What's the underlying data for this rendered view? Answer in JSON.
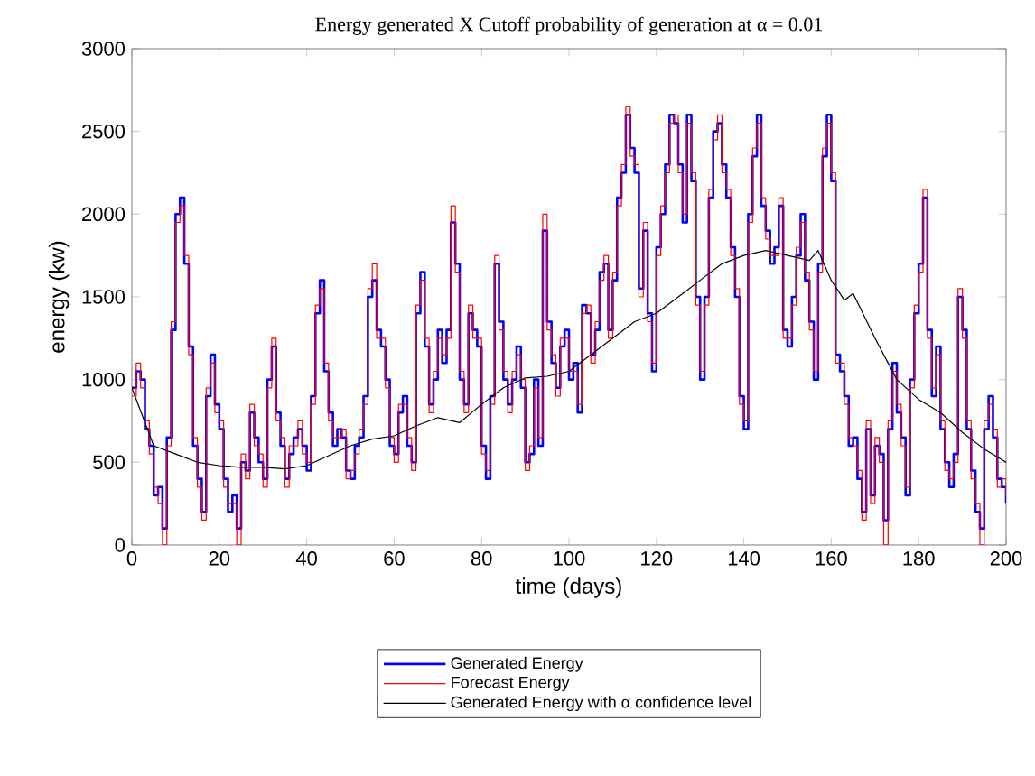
{
  "chart_data": {
    "type": "step",
    "title": "Energy generated X Cutoff probability of generation at α = 0.01",
    "xlabel": "time (days)",
    "ylabel": "energy (kw)",
    "xlim": [
      0,
      200
    ],
    "ylim": [
      0,
      3000
    ],
    "xticks": [
      0,
      20,
      40,
      60,
      80,
      100,
      120,
      140,
      160,
      180,
      200
    ],
    "yticks": [
      0,
      500,
      1000,
      1500,
      2000,
      2500,
      3000
    ],
    "grid": false,
    "legend": "bottom",
    "x": [
      0,
      1,
      2,
      3,
      4,
      5,
      6,
      7,
      8,
      9,
      10,
      11,
      12,
      13,
      14,
      15,
      16,
      17,
      18,
      19,
      20,
      21,
      22,
      23,
      24,
      25,
      26,
      27,
      28,
      29,
      30,
      31,
      32,
      33,
      34,
      35,
      36,
      37,
      38,
      39,
      40,
      41,
      42,
      43,
      44,
      45,
      46,
      47,
      48,
      49,
      50,
      51,
      52,
      53,
      54,
      55,
      56,
      57,
      58,
      59,
      60,
      61,
      62,
      63,
      64,
      65,
      66,
      67,
      68,
      69,
      70,
      71,
      72,
      73,
      74,
      75,
      76,
      77,
      78,
      79,
      80,
      81,
      82,
      83,
      84,
      85,
      86,
      87,
      88,
      89,
      90,
      91,
      92,
      93,
      94,
      95,
      96,
      97,
      98,
      99,
      100,
      101,
      102,
      103,
      104,
      105,
      106,
      107,
      108,
      109,
      110,
      111,
      112,
      113,
      114,
      115,
      116,
      117,
      118,
      119,
      120,
      121,
      122,
      123,
      124,
      125,
      126,
      127,
      128,
      129,
      130,
      131,
      132,
      133,
      134,
      135,
      136,
      137,
      138,
      139,
      140,
      141,
      142,
      143,
      144,
      145,
      146,
      147,
      148,
      149,
      150,
      151,
      152,
      153,
      154,
      155,
      156,
      157,
      158,
      159,
      160,
      161,
      162,
      163,
      164,
      165,
      166,
      167,
      168,
      169,
      170,
      171,
      172,
      173,
      174,
      175,
      176,
      177,
      178,
      179,
      180,
      181,
      182,
      183,
      184,
      185,
      186,
      187,
      188,
      189,
      190,
      191,
      192,
      193,
      194,
      195,
      196,
      197,
      198,
      199,
      200
    ],
    "series": [
      {
        "name": "Generated Energy",
        "color": "#0000ff",
        "values": [
          950,
          1050,
          1000,
          700,
          600,
          300,
          350,
          100,
          650,
          1300,
          2000,
          2100,
          1700,
          1200,
          600,
          400,
          200,
          900,
          1150,
          850,
          700,
          400,
          200,
          300,
          100,
          500,
          450,
          800,
          650,
          500,
          400,
          1000,
          1200,
          800,
          600,
          400,
          550,
          650,
          700,
          600,
          450,
          900,
          1400,
          1600,
          1050,
          800,
          600,
          700,
          650,
          450,
          400,
          600,
          650,
          900,
          1500,
          1600,
          1300,
          1200,
          1000,
          600,
          550,
          800,
          900,
          600,
          500,
          1400,
          1650,
          1200,
          850,
          1000,
          1300,
          1100,
          1300,
          1950,
          1700,
          1000,
          850,
          1400,
          1300,
          1200,
          600,
          400,
          900,
          1700,
          1350,
          1000,
          850,
          1000,
          1200,
          950,
          500,
          550,
          1000,
          600,
          1900,
          1350,
          1100,
          950,
          1200,
          1300,
          1000,
          1100,
          800,
          1450,
          1400,
          1150,
          1300,
          1650,
          1700,
          1300,
          1600,
          2100,
          2250,
          2600,
          2400,
          2250,
          1550,
          1900,
          1400,
          1050,
          1800,
          2000,
          2300,
          2600,
          2550,
          2300,
          1950,
          2600,
          2200,
          1500,
          1000,
          1500,
          2100,
          2500,
          2550,
          2300,
          2100,
          1800,
          1500,
          900,
          700,
          2000,
          2350,
          2600,
          2050,
          1900,
          1700,
          1800,
          2050,
          1300,
          1200,
          1500,
          1750,
          2000,
          1600,
          1350,
          1000,
          1700,
          2350,
          2600,
          2200,
          1150,
          1050,
          900,
          600,
          650,
          400,
          200,
          700,
          300,
          600,
          550,
          150,
          700,
          1100,
          800,
          650,
          300,
          1000,
          1400,
          1700,
          2100,
          1300,
          900,
          1200,
          700,
          500,
          350,
          550,
          1500,
          1300,
          700,
          450,
          200,
          100,
          700,
          900,
          650,
          400,
          350,
          250
        ]
      },
      {
        "name": "Forecast Energy",
        "color": "#ff0000",
        "values": [
          900,
          1100,
          950,
          750,
          550,
          350,
          250,
          0,
          600,
          1350,
          1950,
          2050,
          1750,
          1150,
          650,
          350,
          150,
          950,
          1100,
          800,
          750,
          350,
          250,
          250,
          0,
          550,
          400,
          850,
          600,
          550,
          350,
          950,
          1250,
          750,
          650,
          350,
          600,
          600,
          750,
          550,
          500,
          850,
          1450,
          1550,
          1100,
          750,
          650,
          650,
          700,
          400,
          450,
          550,
          700,
          850,
          1550,
          1700,
          1250,
          1250,
          950,
          650,
          500,
          850,
          850,
          650,
          450,
          1450,
          1600,
          1250,
          800,
          1050,
          1250,
          1150,
          1250,
          2050,
          1650,
          1050,
          800,
          1450,
          1250,
          1250,
          550,
          450,
          850,
          1750,
          1300,
          1050,
          800,
          1050,
          1150,
          1000,
          450,
          600,
          950,
          650,
          2000,
          1300,
          1150,
          900,
          1250,
          1250,
          1050,
          1050,
          850,
          1400,
          1450,
          1100,
          1350,
          1600,
          1750,
          1250,
          1650,
          2050,
          2300,
          2650,
          2350,
          2300,
          1500,
          1950,
          1350,
          1100,
          1750,
          2050,
          2250,
          2550,
          2600,
          2250,
          2000,
          2550,
          2250,
          1450,
          1050,
          1450,
          2150,
          2450,
          2600,
          2250,
          2150,
          1750,
          1550,
          850,
          750,
          1950,
          2400,
          2550,
          2100,
          1850,
          1750,
          1750,
          2100,
          1250,
          1250,
          1450,
          1800,
          1950,
          1650,
          1300,
          1050,
          1650,
          2400,
          2550,
          2250,
          1100,
          1100,
          850,
          650,
          600,
          450,
          150,
          750,
          250,
          650,
          500,
          0,
          750,
          1050,
          850,
          600,
          350,
          950,
          1450,
          1650,
          2150,
          1250,
          950,
          1150,
          750,
          450,
          400,
          500,
          1550,
          1250,
          750,
          400,
          250,
          0,
          750,
          850,
          700,
          350,
          400,
          300
        ]
      },
      {
        "name": "Generated Energy with α confidence level",
        "color": "#000000",
        "type": "line",
        "x": [
          0,
          5,
          10,
          15,
          20,
          25,
          30,
          35,
          40,
          45,
          50,
          55,
          60,
          65,
          70,
          75,
          80,
          85,
          90,
          95,
          100,
          105,
          110,
          115,
          120,
          125,
          130,
          135,
          140,
          145,
          150,
          155,
          157,
          160,
          163,
          165,
          170,
          175,
          180,
          185,
          190,
          195,
          200
        ],
        "values": [
          950,
          600,
          550,
          500,
          480,
          470,
          470,
          460,
          480,
          540,
          600,
          640,
          660,
          720,
          770,
          740,
          850,
          950,
          1010,
          1020,
          1050,
          1150,
          1250,
          1350,
          1400,
          1500,
          1600,
          1700,
          1750,
          1780,
          1750,
          1720,
          1780,
          1600,
          1480,
          1520,
          1250,
          1000,
          880,
          800,
          680,
          580,
          500
        ]
      }
    ]
  }
}
